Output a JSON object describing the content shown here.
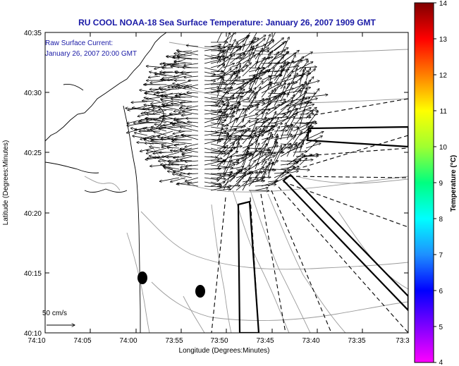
{
  "title": "RU COOL  NOAA-18  Sea Surface Temperature:  January 26, 2007 1909 GMT",
  "annotation": {
    "line1": "Raw Surface Current:",
    "line2": "January 26, 2007 20:00 GMT"
  },
  "scale_label": "50 cm/s",
  "x_axis": {
    "label": "Longitude (Degrees:Minutes)",
    "ticks": [
      "74:10",
      "74:05",
      "74:00",
      "73:55",
      "73:50",
      "73:45",
      "73:40",
      "73:35",
      "73:3"
    ]
  },
  "y_axis": {
    "label": "Latitude (Degrees:Minutes)",
    "ticks": [
      "40:35",
      "40:30",
      "40:25",
      "40:20",
      "40:15",
      "40:10"
    ]
  },
  "colorbar": {
    "label": "Temperature (°C)",
    "ticks": [
      "14",
      "13",
      "12",
      "11",
      "10",
      "9",
      "8",
      "7",
      "6",
      "5",
      "4"
    ],
    "colors": [
      "#8b0000",
      "#ff0000",
      "#ff8c00",
      "#ffff00",
      "#7cfc00",
      "#00ff7f",
      "#00ffff",
      "#1e90ff",
      "#0000ff",
      "#8a2be2",
      "#ff00ff"
    ]
  },
  "map_colors": {
    "land": "#ffffff",
    "coast": "#000000",
    "bathymetry": "#9a9a9a",
    "vectors": "#000000",
    "masks": "#000000"
  }
}
